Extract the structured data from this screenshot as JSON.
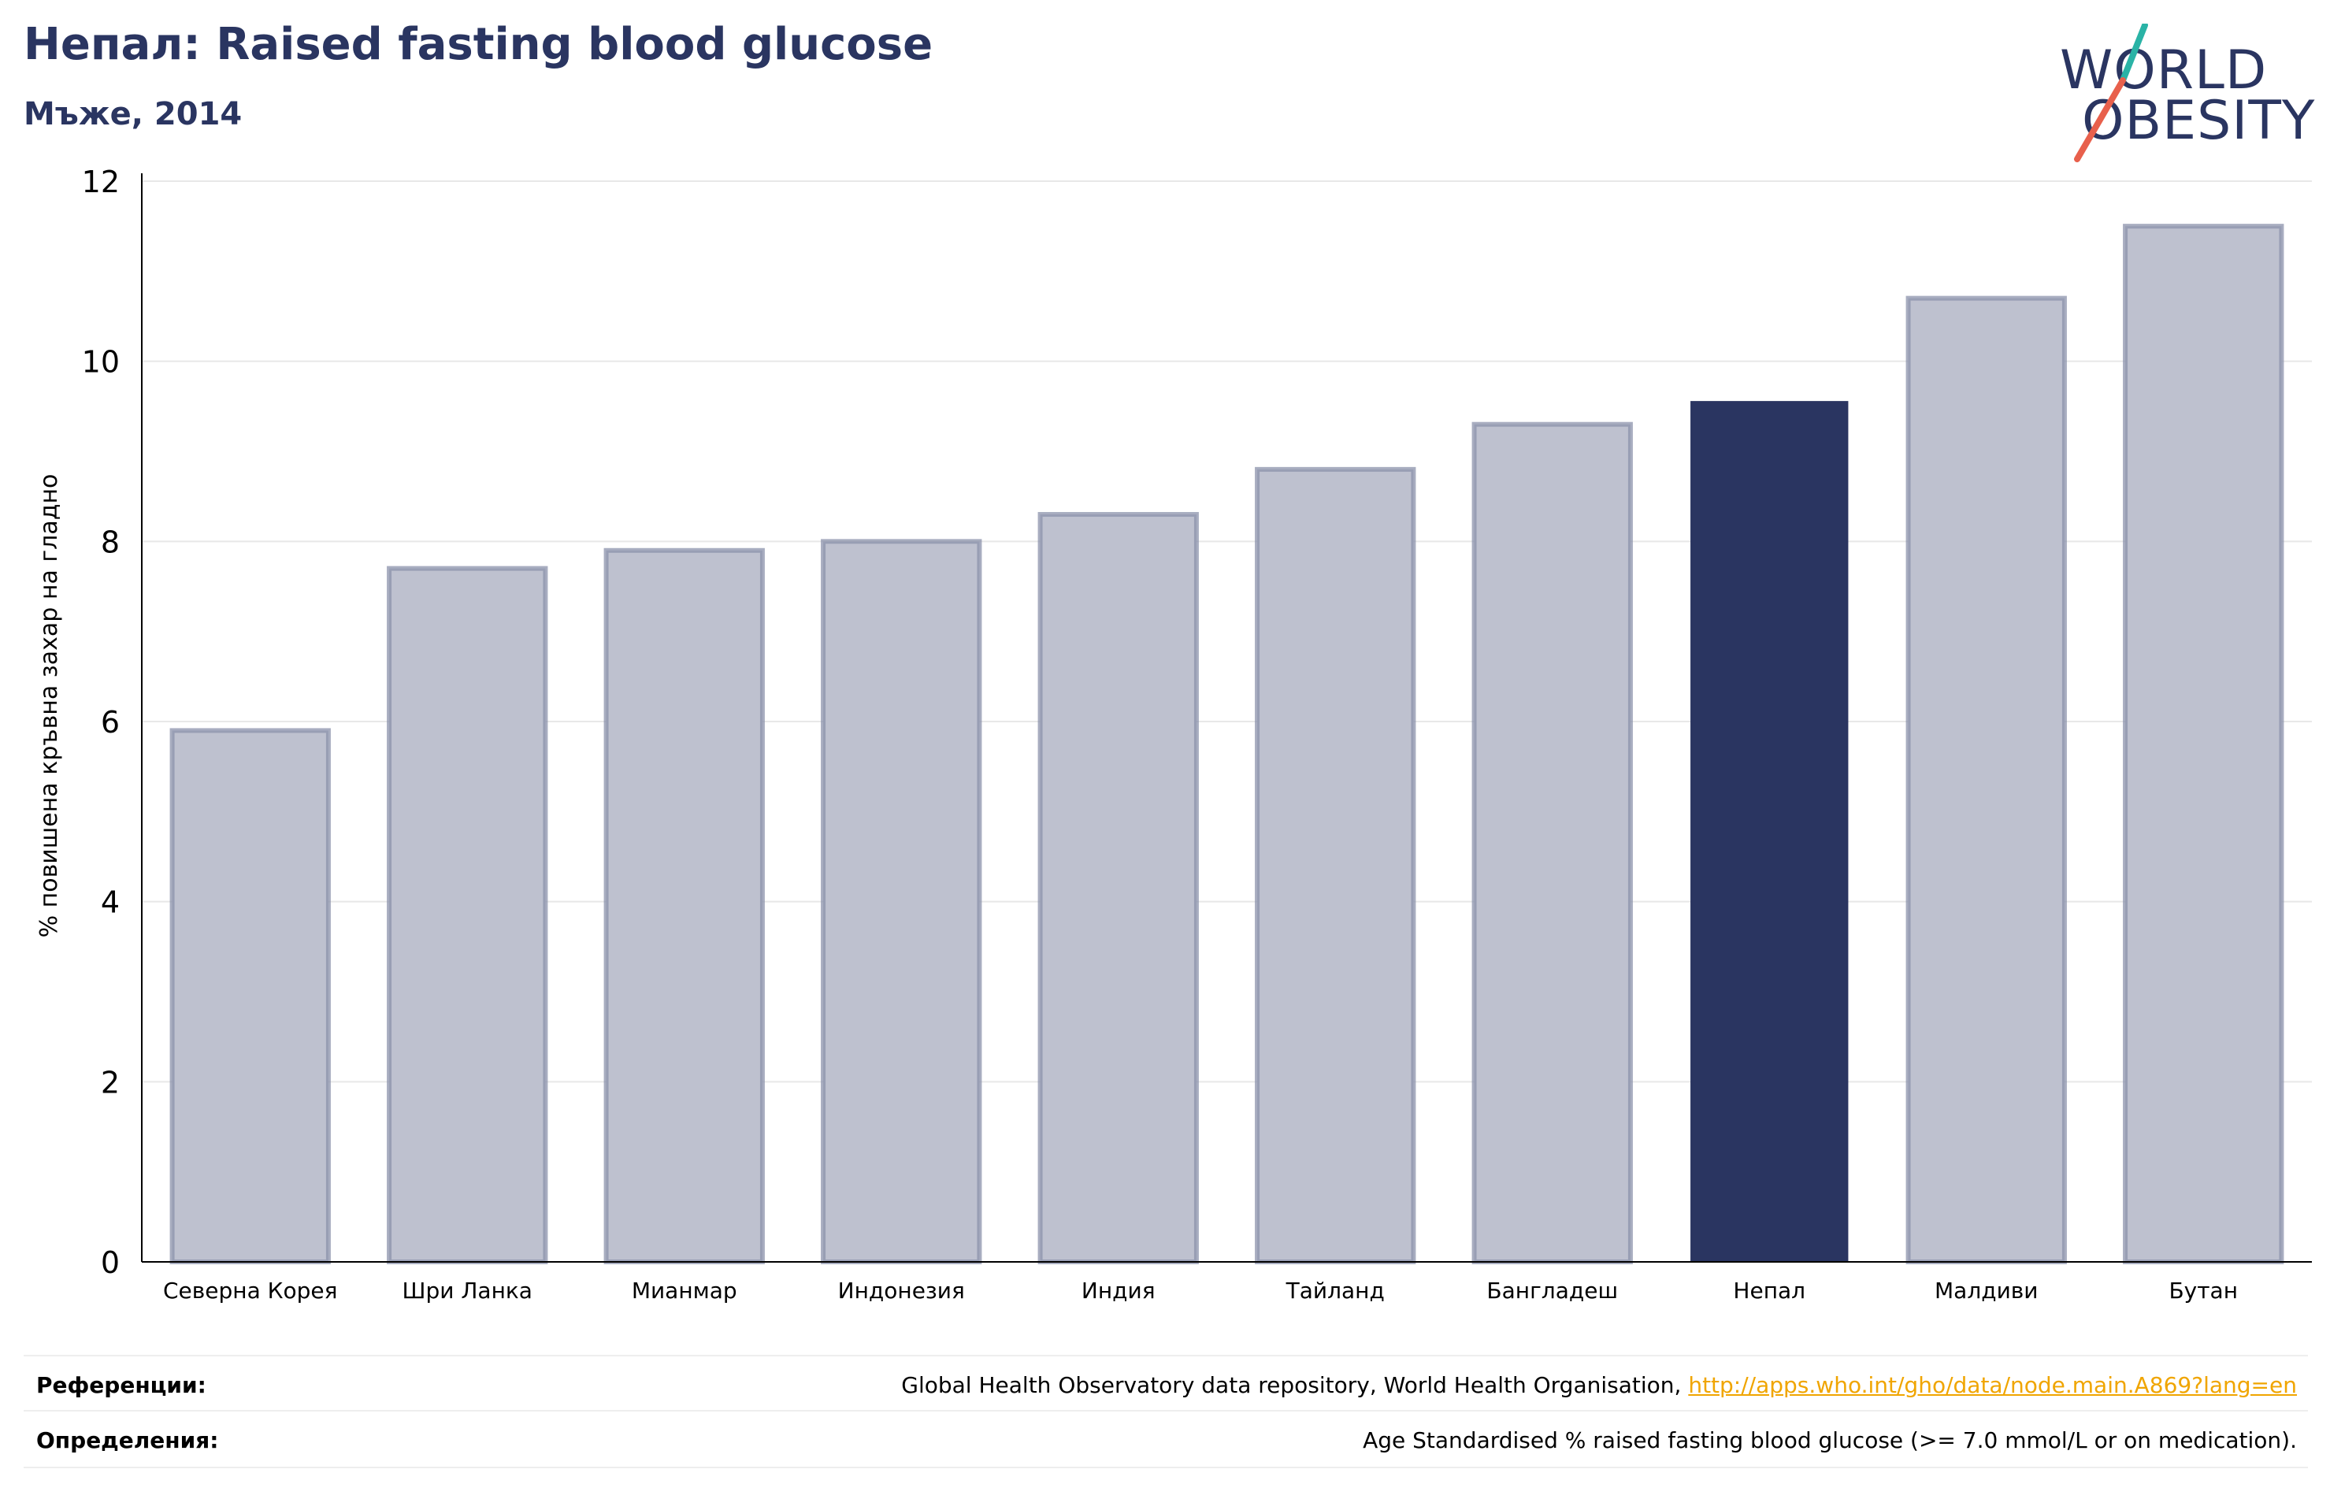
{
  "header": {
    "title": "Непал: Raised fasting blood glucose",
    "subtitle": "Мъже, 2014"
  },
  "logo": {
    "line1": "WORLD",
    "line2": "OBESITY",
    "colors": {
      "text": "#2a3561",
      "slash_top": "#2ab3a6",
      "slash_bottom": "#e8604c"
    }
  },
  "chart_data": {
    "type": "bar",
    "ylabel": "% повишена кръвна захар на гладно",
    "xlabel": "",
    "ylim": [
      0,
      12
    ],
    "yticks": [
      0,
      2,
      4,
      6,
      8,
      10,
      12
    ],
    "grid": true,
    "categories": [
      "Северна Корея",
      "Шри Ланка",
      "Мианмар",
      "Индонезия",
      "Индия",
      "Тайланд",
      "Бангладеш",
      "Непал",
      "Малдиви",
      "Бутан"
    ],
    "values": [
      5.9,
      7.7,
      7.9,
      8.0,
      8.3,
      8.8,
      9.3,
      9.55,
      10.7,
      11.5
    ],
    "highlight": "Непал",
    "colors": {
      "bar": "#bec1cf",
      "bar_edge": "#8b91ab",
      "highlight": "#2a3561",
      "grid": "#e8e8e8",
      "axis": "#000000"
    }
  },
  "footer": {
    "references_label": "Референции:",
    "references_text": "Global Health Observatory data repository, World Health Organisation, ",
    "references_link": "http://apps.who.int/gho/data/node.main.A869?lang=en",
    "definitions_label": "Определения:",
    "definitions_text": "Age Standardised % raised fasting blood glucose (>= 7.0 mmol/L or on medication)."
  }
}
